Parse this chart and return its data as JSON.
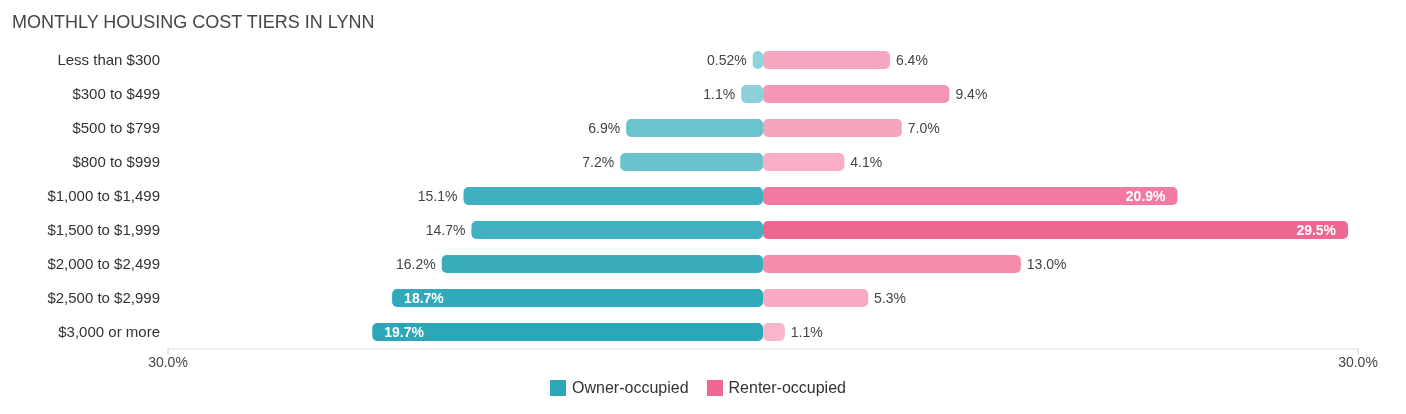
{
  "chart_data": {
    "type": "bar",
    "orientation": "horizontal",
    "title": "MONTHLY HOUSING COST TIERS IN LYNN",
    "categories": [
      "Less than $300",
      "$300 to $499",
      "$500 to $799",
      "$800 to $999",
      "$1,000 to $1,499",
      "$1,500 to $1,999",
      "$2,000 to $2,499",
      "$2,500 to $2,999",
      "$3,000 or more"
    ],
    "series": [
      {
        "name": "Owner-occupied",
        "color": "#2ca7b8",
        "colors": [
          "#8fd3dd",
          "#8ad1db",
          "#6cc3d0",
          "#6bc2cf",
          "#3fb0c0",
          "#41b1c1",
          "#3aadbd",
          "#30a9ba",
          "#2ca7b8"
        ],
        "base": [
          -0.52,
          -1.1,
          -6.9,
          -7.2,
          -15.1,
          -14.7,
          -16.2,
          -18.7,
          -19.7
        ],
        "values": [
          0.52,
          1.1,
          6.9,
          7.2,
          15.1,
          14.7,
          16.2,
          18.7,
          19.7
        ],
        "value_labels": [
          "0.52%",
          "1.1%",
          "6.9%",
          "7.2%",
          "15.1%",
          "14.7%",
          "16.2%",
          "18.7%",
          "19.7%"
        ]
      },
      {
        "name": "Renter-occupied",
        "color": "#ef6690",
        "colors": [
          "#f7a6bf",
          "#f597b4",
          "#f6a3bc",
          "#f8aec5",
          "#f27aa0",
          "#ef6690",
          "#f48caa",
          "#f7aac2",
          "#f9b6ca"
        ],
        "values": [
          6.4,
          9.4,
          7.0,
          4.1,
          20.9,
          29.5,
          13.0,
          5.3,
          1.1
        ],
        "value_labels": [
          "6.4%",
          "9.4%",
          "7.0%",
          "4.1%",
          "20.9%",
          "29.5%",
          "13.0%",
          "5.3%",
          "1.1%"
        ]
      }
    ],
    "xlim": [
      -30,
      30
    ],
    "xticks": [
      {
        "value": -30,
        "label": "30.0%"
      },
      {
        "value": 30,
        "label": "30.0%"
      }
    ],
    "legend": "bottom"
  }
}
